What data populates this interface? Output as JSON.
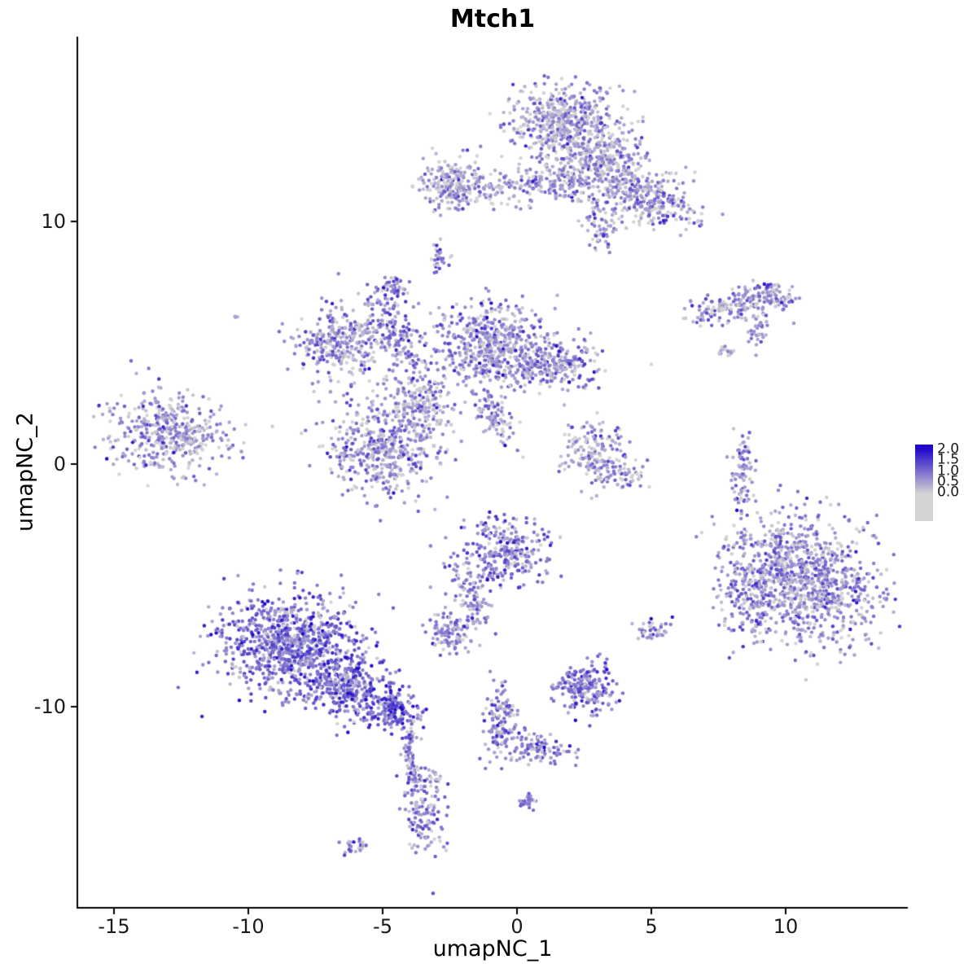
{
  "chart_data": {
    "type": "scatter",
    "title": "Mtch1",
    "xlabel": "umapNC_1",
    "ylabel": "umapNC_2",
    "x_ticks": [
      -15,
      -10,
      -5,
      0,
      5,
      10
    ],
    "y_ticks": [
      -10,
      0,
      10
    ],
    "x_range": [
      -16.4,
      14.5
    ],
    "y_range": [
      -18.3,
      17.6
    ],
    "grid": false,
    "legend_position": "right",
    "legend": {
      "labels": [
        "2.0",
        "1.5",
        "1.0",
        "0.5",
        "0.0"
      ],
      "low_color": "#D3D3D3",
      "high_color": "#2209C8"
    },
    "expression_scale": [
      0,
      2
    ],
    "expr_sd": 0.5,
    "clusters": [
      {
        "x": 1.7,
        "y": 14.1,
        "sx": 1.0,
        "sy": 0.75,
        "rot": 0,
        "n": 480,
        "m": 0.5
      },
      {
        "x": 3.1,
        "y": 12.4,
        "sx": 1.1,
        "sy": 0.85,
        "rot": -25,
        "n": 380,
        "m": 0.5
      },
      {
        "x": 5.0,
        "y": 10.9,
        "sx": 0.9,
        "sy": 0.5,
        "rot": -25,
        "n": 240,
        "m": 0.55
      },
      {
        "x": 0.5,
        "y": 11.5,
        "sx": 1.2,
        "sy": 0.4,
        "rot": 0,
        "n": 180,
        "m": 0.5
      },
      {
        "x": 3.1,
        "y": 9.6,
        "sx": 0.3,
        "sy": 0.55,
        "rot": 0,
        "n": 60,
        "m": 0.55
      },
      {
        "x": -2.3,
        "y": 11.5,
        "sx": 0.75,
        "sy": 0.55,
        "rot": 0,
        "n": 220,
        "m": 0.55
      },
      {
        "x": -2.9,
        "y": 8.5,
        "sx": 0.15,
        "sy": 0.3,
        "rot": 0,
        "n": 30,
        "m": 0.6
      },
      {
        "x": -4.6,
        "y": 7.3,
        "sx": 0.3,
        "sy": 0.25,
        "rot": 0,
        "n": 45,
        "m": 0.85
      },
      {
        "x": -10.5,
        "y": 6.1,
        "sx": 0.06,
        "sy": 0.06,
        "rot": 0,
        "n": 3,
        "m": 0.6
      },
      {
        "x": 7.9,
        "y": 6.5,
        "sx": 0.7,
        "sy": 0.3,
        "rot": 15,
        "n": 120,
        "m": 0.6
      },
      {
        "x": 9.5,
        "y": 6.9,
        "sx": 0.55,
        "sy": 0.3,
        "rot": -10,
        "n": 90,
        "m": 0.65
      },
      {
        "x": 9.0,
        "y": 5.7,
        "sx": 0.2,
        "sy": 0.45,
        "rot": 0,
        "n": 40,
        "m": 0.6
      },
      {
        "x": 7.8,
        "y": 4.6,
        "sx": 0.15,
        "sy": 0.15,
        "rot": 0,
        "n": 15,
        "m": 0.5
      },
      {
        "x": -6.6,
        "y": 5.0,
        "sx": 0.85,
        "sy": 0.7,
        "rot": 0,
        "n": 300,
        "m": 0.6
      },
      {
        "x": -4.6,
        "y": 5.5,
        "sx": 0.4,
        "sy": 0.9,
        "rot": 20,
        "n": 150,
        "m": 0.7
      },
      {
        "x": -1.0,
        "y": 4.9,
        "sx": 1.05,
        "sy": 0.85,
        "rot": 0,
        "n": 520,
        "m": 0.65
      },
      {
        "x": 1.3,
        "y": 4.1,
        "sx": 0.95,
        "sy": 0.5,
        "rot": 0,
        "n": 260,
        "m": 0.6
      },
      {
        "x": -4.9,
        "y": 0.7,
        "sx": 1.05,
        "sy": 0.95,
        "rot": 0,
        "n": 480,
        "m": 0.6
      },
      {
        "x": -3.6,
        "y": 2.7,
        "sx": 0.55,
        "sy": 0.8,
        "rot": 25,
        "n": 170,
        "m": 0.6
      },
      {
        "x": -0.8,
        "y": 2.0,
        "sx": 0.35,
        "sy": 0.7,
        "rot": 30,
        "n": 90,
        "m": 0.6
      },
      {
        "x": -12.9,
        "y": 1.2,
        "sx": 1.15,
        "sy": 0.8,
        "rot": 0,
        "n": 420,
        "m": 0.55
      },
      {
        "x": 2.9,
        "y": 0.6,
        "sx": 0.6,
        "sy": 0.7,
        "rot": 0,
        "n": 140,
        "m": 0.5
      },
      {
        "x": 3.7,
        "y": -0.4,
        "sx": 0.5,
        "sy": 0.4,
        "rot": 0,
        "n": 70,
        "m": 0.5
      },
      {
        "x": 8.4,
        "y": -0.6,
        "sx": 0.22,
        "sy": 0.95,
        "rot": 0,
        "n": 85,
        "m": 0.6
      },
      {
        "x": 10.3,
        "y": -3.9,
        "sx": 1.3,
        "sy": 1.0,
        "rot": 0,
        "n": 500,
        "m": 0.6
      },
      {
        "x": 11.3,
        "y": -5.6,
        "sx": 1.2,
        "sy": 1.0,
        "rot": 0,
        "n": 450,
        "m": 0.6
      },
      {
        "x": 8.7,
        "y": -5.6,
        "sx": 0.6,
        "sy": 0.9,
        "rot": 0,
        "n": 160,
        "m": 0.65
      },
      {
        "x": -0.4,
        "y": -3.6,
        "sx": 0.8,
        "sy": 0.7,
        "rot": 0,
        "n": 280,
        "m": 0.75
      },
      {
        "x": -1.8,
        "y": -5.4,
        "sx": 0.35,
        "sy": 0.7,
        "rot": 25,
        "n": 90,
        "m": 0.7
      },
      {
        "x": -2.5,
        "y": -6.9,
        "sx": 0.45,
        "sy": 0.35,
        "rot": 0,
        "n": 110,
        "m": 0.7
      },
      {
        "x": -8.5,
        "y": -7.4,
        "sx": 1.25,
        "sy": 1.0,
        "rot": 0,
        "n": 850,
        "m": 0.95
      },
      {
        "x": -6.3,
        "y": -9.2,
        "sx": 0.9,
        "sy": 0.65,
        "rot": -20,
        "n": 350,
        "m": 1.05
      },
      {
        "x": -4.6,
        "y": -10.1,
        "sx": 0.5,
        "sy": 0.4,
        "rot": 0,
        "n": 150,
        "m": 1.1
      },
      {
        "x": -4.0,
        "y": -11.7,
        "sx": 0.18,
        "sy": 0.7,
        "rot": 0,
        "n": 60,
        "m": 0.8
      },
      {
        "x": -3.8,
        "y": -13.0,
        "sx": 0.15,
        "sy": 0.3,
        "rot": 0,
        "n": 25,
        "m": 0.7
      },
      {
        "x": 2.5,
        "y": -9.2,
        "sx": 0.55,
        "sy": 0.5,
        "rot": 0,
        "n": 200,
        "m": 0.95
      },
      {
        "x": 5.1,
        "y": -6.9,
        "sx": 0.28,
        "sy": 0.22,
        "rot": 0,
        "n": 40,
        "m": 0.7
      },
      {
        "x": -0.6,
        "y": -10.6,
        "sx": 0.35,
        "sy": 0.85,
        "rot": 0,
        "n": 130,
        "m": 0.8
      },
      {
        "x": 0.9,
        "y": -11.7,
        "sx": 0.7,
        "sy": 0.3,
        "rot": -15,
        "n": 90,
        "m": 0.8
      },
      {
        "x": -3.4,
        "y": -14.3,
        "sx": 0.4,
        "sy": 0.95,
        "rot": 0,
        "n": 140,
        "m": 0.75
      },
      {
        "x": -6.0,
        "y": -15.8,
        "sx": 0.28,
        "sy": 0.16,
        "rot": 0,
        "n": 25,
        "m": 0.7
      },
      {
        "x": 0.4,
        "y": -13.9,
        "sx": 0.2,
        "sy": 0.2,
        "rot": 0,
        "n": 25,
        "m": 0.8
      }
    ]
  }
}
